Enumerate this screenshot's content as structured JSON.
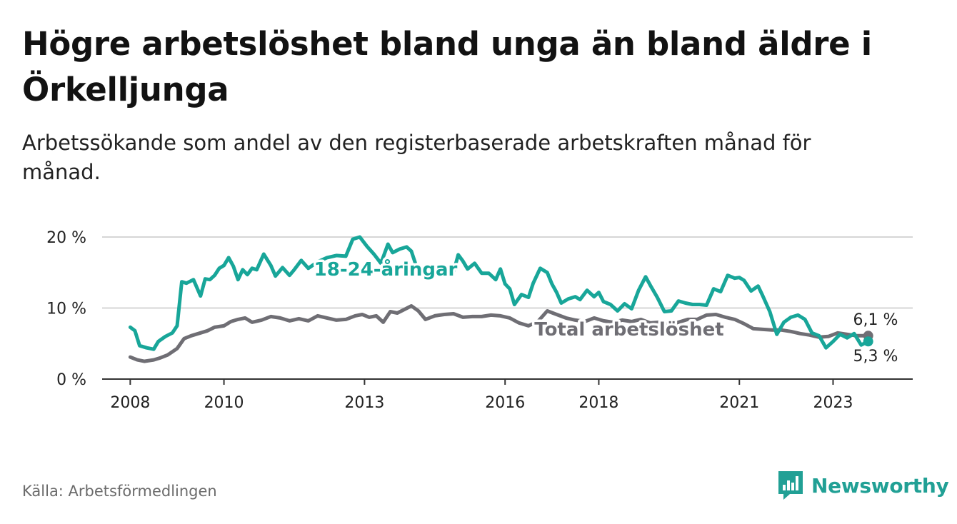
{
  "title": "Högre arbetslöshet bland unga än bland äldre i Örkelljunga",
  "subtitle": "Arbetssökande som andel av den registerbaserade arbetskraften månad för månad.",
  "source": "Källa: Arbetsförmedlingen",
  "brand": "Newsworthy",
  "colors": {
    "young": "#18a699",
    "total": "#6f6e74",
    "grid": "#d6d6d6",
    "brand": "#21a095"
  },
  "chart_data": {
    "type": "line",
    "title": "Högre arbetslöshet bland unga än bland äldre i Örkelljunga",
    "ylim": [
      0,
      20
    ],
    "xlim": [
      2007.4,
      2024.7
    ],
    "y_ticks": [
      0,
      10,
      20
    ],
    "y_tick_labels": [
      "0 %",
      "10 %",
      "20 %"
    ],
    "x_ticks": [
      2008,
      2010,
      2013,
      2016,
      2018,
      2021,
      2023
    ],
    "x_tick_labels": [
      "2008",
      "2010",
      "2013",
      "2016",
      "2018",
      "2021",
      "2023"
    ],
    "grid": true,
    "series": [
      {
        "name": "18-24-åringar",
        "label": "18-24-åringar",
        "end_label": "5,3 %",
        "x": [
          2008.0,
          2008.1,
          2008.2,
          2008.35,
          2008.5,
          2008.6,
          2008.75,
          2008.9,
          2009.0,
          2009.1,
          2009.2,
          2009.35,
          2009.5,
          2009.6,
          2009.7,
          2009.8,
          2009.9,
          2010.0,
          2010.1,
          2010.2,
          2010.3,
          2010.4,
          2010.5,
          2010.6,
          2010.7,
          2010.85,
          2011.0,
          2011.1,
          2011.25,
          2011.4,
          2011.5,
          2011.65,
          2011.8,
          2012.0,
          2012.2,
          2012.4,
          2012.6,
          2012.75,
          2012.9,
          2013.05,
          2013.2,
          2013.35,
          2013.5,
          2013.6,
          2013.75,
          2013.9,
          2014.0,
          2014.1,
          2014.2,
          2014.35,
          2014.5,
          2014.65,
          2014.8,
          2014.9,
          2015.0,
          2015.1,
          2015.2,
          2015.35,
          2015.5,
          2015.65,
          2015.8,
          2015.9,
          2016.0,
          2016.1,
          2016.2,
          2016.35,
          2016.5,
          2016.6,
          2016.75,
          2016.9,
          2017.0,
          2017.1,
          2017.2,
          2017.35,
          2017.5,
          2017.6,
          2017.75,
          2017.9,
          2018.0,
          2018.1,
          2018.25,
          2018.4,
          2018.55,
          2018.7,
          2018.85,
          2019.0,
          2019.1,
          2019.25,
          2019.4,
          2019.55,
          2019.7,
          2019.85,
          2020.0,
          2020.15,
          2020.3,
          2020.45,
          2020.6,
          2020.75,
          2020.9,
          2021.0,
          2021.1,
          2021.25,
          2021.4,
          2021.5,
          2021.65,
          2021.8,
          2021.95,
          2022.1,
          2022.25,
          2022.4,
          2022.55,
          2022.7,
          2022.85,
          2023.0,
          2023.15,
          2023.3,
          2023.45,
          2023.6,
          2023.75
        ],
        "values": [
          7.3,
          6.8,
          4.7,
          4.4,
          4.2,
          5.3,
          6.0,
          6.5,
          7.5,
          13.7,
          13.5,
          14.0,
          11.7,
          14.1,
          14.0,
          14.6,
          15.6,
          16.0,
          17.1,
          15.9,
          14.0,
          15.4,
          14.7,
          15.6,
          15.4,
          17.6,
          16.0,
          14.5,
          15.7,
          14.6,
          15.4,
          16.7,
          15.6,
          16.5,
          17.1,
          17.4,
          17.3,
          19.7,
          20.0,
          18.7,
          17.6,
          16.3,
          19.0,
          17.8,
          18.3,
          18.6,
          18.0,
          16.0,
          15.5,
          15.4,
          15.3,
          15.0,
          15.9,
          15.1,
          17.5,
          16.6,
          15.5,
          16.3,
          14.9,
          14.9,
          14.0,
          15.5,
          13.4,
          12.7,
          10.5,
          11.9,
          11.5,
          13.5,
          15.6,
          15.0,
          13.4,
          12.2,
          10.7,
          11.3,
          11.6,
          11.2,
          12.5,
          11.6,
          12.2,
          10.9,
          10.5,
          9.6,
          10.6,
          9.9,
          12.5,
          14.4,
          13.2,
          11.5,
          9.5,
          9.6,
          11.0,
          10.7,
          10.5,
          10.5,
          10.4,
          12.7,
          12.3,
          14.6,
          14.2,
          14.3,
          13.9,
          12.4,
          13.1,
          11.7,
          9.5,
          6.3,
          8.0,
          8.7,
          9.0,
          8.4,
          6.5,
          6.1,
          4.4,
          5.3,
          6.3,
          5.8,
          6.4,
          4.8,
          5.3
        ]
      },
      {
        "name": "Total arbetslöshet",
        "label": "Total arbetslöshet",
        "end_label": "6,1 %",
        "x": [
          2008.0,
          2008.15,
          2008.3,
          2008.5,
          2008.65,
          2008.8,
          2009.0,
          2009.15,
          2009.3,
          2009.5,
          2009.65,
          2009.8,
          2010.0,
          2010.15,
          2010.3,
          2010.45,
          2010.6,
          2010.8,
          2011.0,
          2011.2,
          2011.4,
          2011.6,
          2011.8,
          2012.0,
          2012.2,
          2012.4,
          2012.6,
          2012.8,
          2012.95,
          2013.1,
          2013.25,
          2013.4,
          2013.55,
          2013.7,
          2013.85,
          2014.0,
          2014.15,
          2014.3,
          2014.5,
          2014.7,
          2014.9,
          2015.1,
          2015.3,
          2015.5,
          2015.7,
          2015.9,
          2016.1,
          2016.3,
          2016.5,
          2016.7,
          2016.9,
          2017.1,
          2017.3,
          2017.5,
          2017.7,
          2017.9,
          2018.1,
          2018.3,
          2018.5,
          2018.7,
          2018.9,
          2019.1,
          2019.3,
          2019.5,
          2019.7,
          2019.9,
          2020.1,
          2020.3,
          2020.5,
          2020.7,
          2020.9,
          2021.1,
          2021.3,
          2021.5,
          2021.7,
          2021.9,
          2022.1,
          2022.3,
          2022.5,
          2022.7,
          2022.9,
          2023.1,
          2023.3,
          2023.5,
          2023.75
        ],
        "values": [
          3.1,
          2.7,
          2.5,
          2.7,
          3.0,
          3.4,
          4.3,
          5.7,
          6.1,
          6.5,
          6.8,
          7.3,
          7.5,
          8.1,
          8.4,
          8.6,
          8.0,
          8.3,
          8.8,
          8.6,
          8.2,
          8.5,
          8.2,
          8.9,
          8.6,
          8.3,
          8.4,
          8.9,
          9.1,
          8.7,
          8.9,
          8.0,
          9.5,
          9.3,
          9.8,
          10.3,
          9.6,
          8.4,
          8.9,
          9.1,
          9.2,
          8.7,
          8.8,
          8.8,
          9.0,
          8.9,
          8.6,
          7.9,
          7.5,
          8.1,
          9.6,
          9.1,
          8.6,
          8.3,
          8.1,
          8.6,
          8.2,
          8.0,
          8.3,
          8.1,
          8.4,
          7.9,
          8.0,
          7.7,
          8.0,
          8.4,
          8.4,
          9.0,
          9.1,
          8.7,
          8.4,
          7.8,
          7.1,
          7.0,
          6.9,
          6.9,
          6.7,
          6.4,
          6.2,
          5.9,
          6.0,
          6.5,
          6.3,
          6.1,
          6.1
        ]
      }
    ]
  }
}
